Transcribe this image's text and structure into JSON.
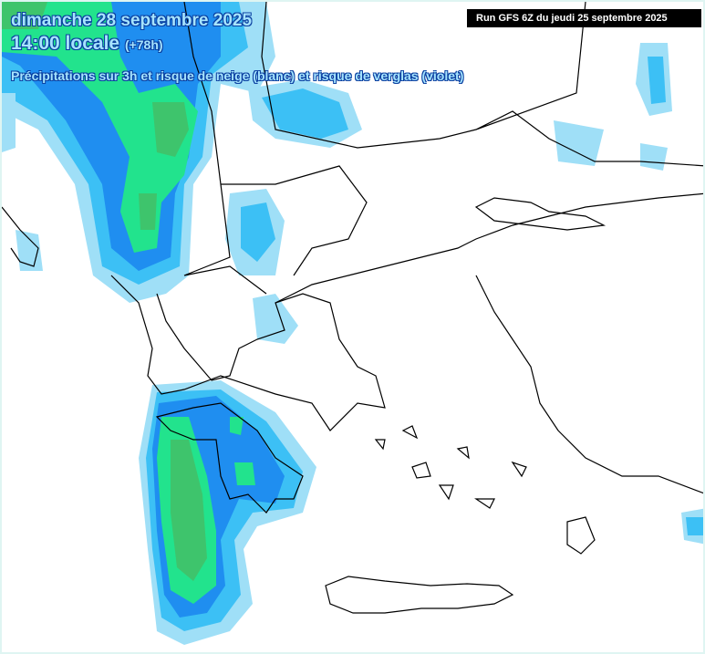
{
  "header": {
    "date": "dimanche 28 septembre 2025",
    "time": "14:00 locale",
    "lead": "(+78h)",
    "description": "Précipitations sur 3h et risque de neige (blanc) et risque de verglas (violet)",
    "run": "Run GFS 6Z du jeudi 25 septembre 2025"
  },
  "colors": {
    "light_blue": "#9fdff7",
    "medium_blue": "#3cc0f5",
    "blue": "#1f8ef0",
    "green_light": "#22e38d",
    "green_dark": "#3ec46c",
    "coastline": "#000000"
  }
}
